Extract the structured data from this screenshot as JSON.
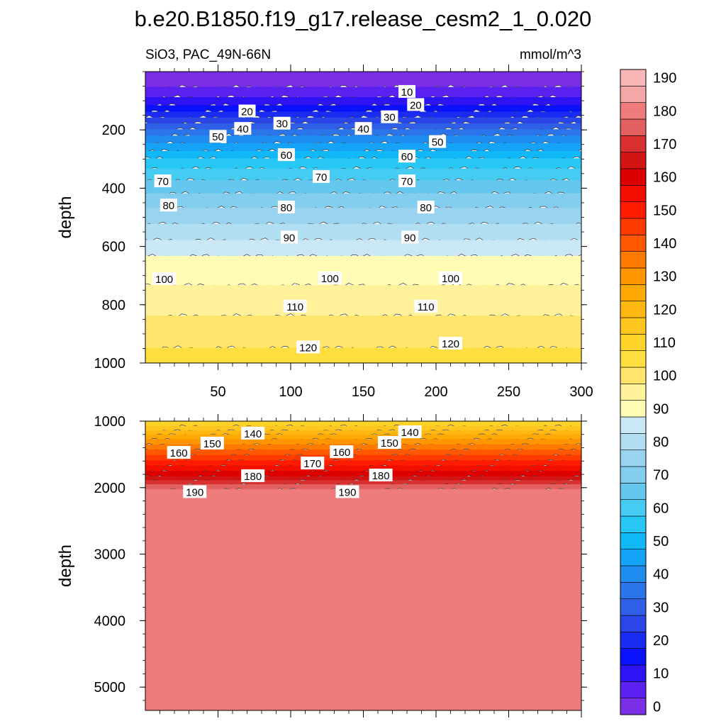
{
  "title": "b.e20.B1850.f19_g17.release_cesm2_1_0.020",
  "chart_data": {
    "type": "heatmap",
    "subtitle_left": "SiO3, PAC_49N-66N",
    "subtitle_right": "mmol/m^3",
    "colorbar": {
      "levels": [
        0,
        5,
        10,
        15,
        20,
        25,
        30,
        35,
        40,
        45,
        50,
        55,
        60,
        65,
        70,
        75,
        80,
        85,
        90,
        95,
        100,
        105,
        110,
        115,
        120,
        125,
        130,
        135,
        140,
        145,
        150,
        155,
        160,
        165,
        170,
        175,
        180,
        185,
        190,
        195
      ],
      "tick_labels": [
        "0",
        "10",
        "20",
        "30",
        "40",
        "50",
        "60",
        "70",
        "80",
        "90",
        "100",
        "110",
        "120",
        "130",
        "140",
        "150",
        "160",
        "170",
        "180",
        "190"
      ],
      "colors": [
        "#7a2fe6",
        "#5a21f0",
        "#2e14f5",
        "#0a12fb",
        "#1a2cf2",
        "#2a45e8",
        "#2f5fe6",
        "#2b75ea",
        "#1f8cf0",
        "#14a3f6",
        "#11b8f8",
        "#27c7f6",
        "#46cbf2",
        "#66c7ee",
        "#83cdee",
        "#99d3f0",
        "#b2def2",
        "#c9e7f4",
        "#fffbb5",
        "#fff29a",
        "#ffe56b",
        "#ffdf40",
        "#ffd42a",
        "#ffc61f",
        "#ffb812",
        "#ffa907",
        "#ff9600",
        "#ff7a00",
        "#ff5800",
        "#ff3b00",
        "#ff1c00",
        "#f20f00",
        "#dc0000",
        "#d21414",
        "#da3030",
        "#e26060",
        "#ee7c7c",
        "#f4a7a7",
        "#fab7b7"
      ]
    },
    "panels": [
      {
        "ylabel": "depth",
        "y_range": [
          0,
          1000
        ],
        "y_ticks": [
          "200",
          "400",
          "600",
          "800",
          "1000"
        ],
        "x_ticks": [
          "50",
          "100",
          "150",
          "200",
          "250",
          "300"
        ],
        "contour_labels": [
          {
            "value": "10",
            "x": 180,
            "y": 68
          },
          {
            "value": "20",
            "x": 70,
            "y": 135
          },
          {
            "value": "20",
            "x": 186,
            "y": 113
          },
          {
            "value": "30",
            "x": 94,
            "y": 177
          },
          {
            "value": "30",
            "x": 168,
            "y": 155
          },
          {
            "value": "40",
            "x": 67,
            "y": 195
          },
          {
            "value": "40",
            "x": 150,
            "y": 195
          },
          {
            "value": "50",
            "x": 50,
            "y": 222
          },
          {
            "value": "50",
            "x": 201,
            "y": 240
          },
          {
            "value": "60",
            "x": 97,
            "y": 285
          },
          {
            "value": "60",
            "x": 180,
            "y": 290
          },
          {
            "value": "70",
            "x": 12,
            "y": 375
          },
          {
            "value": "70",
            "x": 121,
            "y": 360
          },
          {
            "value": "70",
            "x": 180,
            "y": 375
          },
          {
            "value": "80",
            "x": 16,
            "y": 458
          },
          {
            "value": "80",
            "x": 97,
            "y": 465
          },
          {
            "value": "80",
            "x": 193,
            "y": 465
          },
          {
            "value": "90",
            "x": 99,
            "y": 568
          },
          {
            "value": "90",
            "x": 182,
            "y": 568
          },
          {
            "value": "100",
            "x": 13,
            "y": 710
          },
          {
            "value": "100",
            "x": 127,
            "y": 708
          },
          {
            "value": "100",
            "x": 210,
            "y": 708
          },
          {
            "value": "110",
            "x": 103,
            "y": 805
          },
          {
            "value": "110",
            "x": 193,
            "y": 805
          },
          {
            "value": "120",
            "x": 112,
            "y": 945
          },
          {
            "value": "120",
            "x": 210,
            "y": 932
          }
        ],
        "bands": [
          {
            "upper": 55,
            "value": 2
          },
          {
            "upper": 90,
            "value": 7
          },
          {
            "upper": 118,
            "value": 12
          },
          {
            "upper": 140,
            "value": 17
          },
          {
            "upper": 160,
            "value": 22
          },
          {
            "upper": 180,
            "value": 27
          },
          {
            "upper": 200,
            "value": 32
          },
          {
            "upper": 222,
            "value": 37
          },
          {
            "upper": 248,
            "value": 42
          },
          {
            "upper": 275,
            "value": 47
          },
          {
            "upper": 300,
            "value": 52
          },
          {
            "upper": 335,
            "value": 57
          },
          {
            "upper": 375,
            "value": 62
          },
          {
            "upper": 420,
            "value": 67
          },
          {
            "upper": 470,
            "value": 72
          },
          {
            "upper": 525,
            "value": 77
          },
          {
            "upper": 580,
            "value": 82
          },
          {
            "upper": 635,
            "value": 87
          },
          {
            "upper": 735,
            "value": 92
          },
          {
            "upper": 840,
            "value": 97
          },
          {
            "upper": 950,
            "value": 102
          },
          {
            "upper": 1000,
            "value": 107
          }
        ]
      },
      {
        "ylabel": "depth",
        "y_range": [
          1000,
          5350
        ],
        "y_ticks": [
          "1000",
          "2000",
          "3000",
          "4000",
          "5000"
        ],
        "x_ticks": [],
        "contour_labels": [
          {
            "value": "140",
            "x": 74,
            "y": 1180
          },
          {
            "value": "140",
            "x": 182,
            "y": 1160
          },
          {
            "value": "150",
            "x": 46,
            "y": 1330
          },
          {
            "value": "150",
            "x": 168,
            "y": 1320
          },
          {
            "value": "160",
            "x": 23,
            "y": 1470
          },
          {
            "value": "160",
            "x": 135,
            "y": 1460
          },
          {
            "value": "170",
            "x": 115,
            "y": 1630
          },
          {
            "value": "180",
            "x": 74,
            "y": 1820
          },
          {
            "value": "180",
            "x": 162,
            "y": 1810
          },
          {
            "value": "190",
            "x": 34,
            "y": 2060
          },
          {
            "value": "190",
            "x": 139,
            "y": 2060
          }
        ],
        "bands": [
          {
            "upper": 1080,
            "value": 112
          },
          {
            "upper": 1150,
            "value": 117
          },
          {
            "upper": 1210,
            "value": 122
          },
          {
            "upper": 1280,
            "value": 127
          },
          {
            "upper": 1360,
            "value": 132
          },
          {
            "upper": 1440,
            "value": 137
          },
          {
            "upper": 1520,
            "value": 142
          },
          {
            "upper": 1600,
            "value": 147
          },
          {
            "upper": 1680,
            "value": 152
          },
          {
            "upper": 1760,
            "value": 157
          },
          {
            "upper": 1840,
            "value": 162
          },
          {
            "upper": 1900,
            "value": 167
          },
          {
            "upper": 1960,
            "value": 172
          },
          {
            "upper": 2030,
            "value": 177
          },
          {
            "upper": 5350,
            "value": 182
          }
        ]
      }
    ],
    "x_range": [
      0,
      300
    ]
  }
}
